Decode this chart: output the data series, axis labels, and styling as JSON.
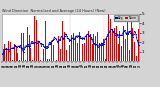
{
  "title": "Wind Direction  Normalized and Average (24 Hours) (New)",
  "bg_color": "#d4d4d4",
  "plot_bg_color": "#ffffff",
  "bar_color": "#dd0000",
  "line_color": "#0000cc",
  "ylim": [
    0,
    5
  ],
  "yticks": [
    1,
    2,
    3,
    4,
    5
  ],
  "n_points": 200,
  "seed": 7,
  "bar_width": 0.5,
  "line_width": 0.5,
  "marker_size": 0.8,
  "grid_color": "#aaaaaa",
  "n_grid_lines": 5
}
